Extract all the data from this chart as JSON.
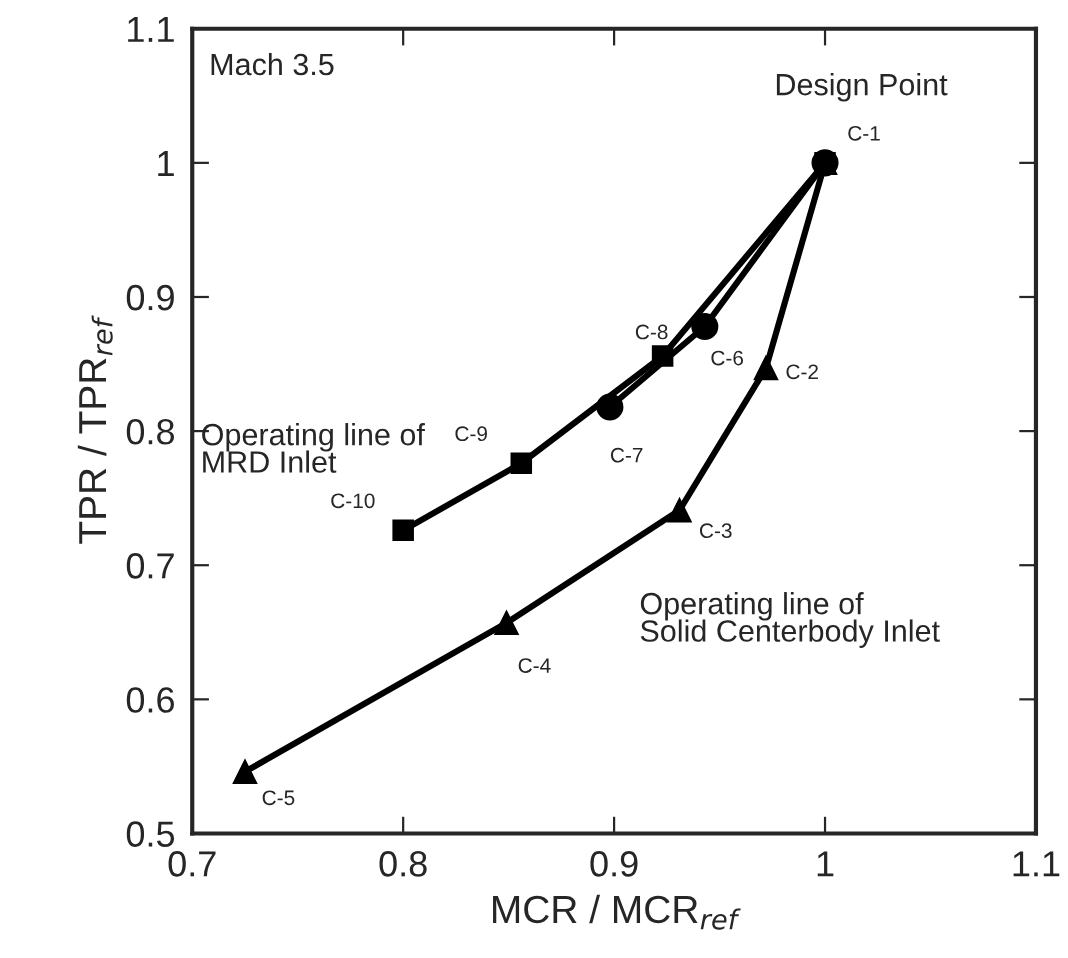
{
  "chart_data": {
    "type": "line",
    "xlabel": "MCR / MCR$_{ref}$",
    "ylabel": "TPR / TPR$_{ref}$",
    "series": [
      {
        "color": "#000000",
        "marker": "triangle",
        "x": [
          1.0,
          0.972,
          0.931,
          0.849,
          0.725
        ],
        "values": [
          1.0,
          0.847,
          0.741,
          0.657,
          0.546
        ]
      },
      {
        "color": "#000000",
        "marker": "square",
        "x": [
          0.8,
          0.856,
          0.923,
          1.0
        ],
        "values": [
          0.726,
          0.776,
          0.856,
          1.0
        ]
      },
      {
        "color": "#000000",
        "marker": "circle",
        "x": [
          0.898,
          0.943,
          1.0
        ],
        "values": [
          0.818,
          0.878,
          1.0
        ]
      }
    ],
    "annotations": [
      "Mach 3.5",
      "Design Point",
      "Operating line of\nMRD Inlet",
      "Operating line of\nSolid Centerbody Inlet",
      {
        "text": "C-1",
        "x": 1.0,
        "y": 1.0
      },
      {
        "text": "C-2",
        "x": 0.972,
        "y": 0.847
      },
      {
        "text": "C-3",
        "x": 0.931,
        "y": 0.741
      },
      {
        "text": "C-4",
        "x": 0.849,
        "y": 0.657
      },
      {
        "text": "C-5",
        "x": 0.725,
        "y": 0.546
      },
      {
        "text": "C-6",
        "x": 0.943,
        "y": 0.878
      },
      {
        "text": "C-7",
        "x": 0.898,
        "y": 0.818
      },
      {
        "text": "C-8",
        "x": 0.923,
        "y": 0.856
      },
      {
        "text": "C-9",
        "x": 0.856,
        "y": 0.776
      },
      {
        "text": "C-10",
        "x": 0.8,
        "y": 0.726
      }
    ],
    "xlim": [
      0.7,
      1.1
    ],
    "xticks": [
      0.7,
      0.8,
      0.9,
      1,
      1.1
    ],
    "ylim": [
      0.5,
      1.1
    ],
    "yticks": [
      0.5,
      0.6,
      0.7,
      0.8,
      0.9,
      1,
      1.1
    ],
    "grid": false,
    "legend": false
  }
}
